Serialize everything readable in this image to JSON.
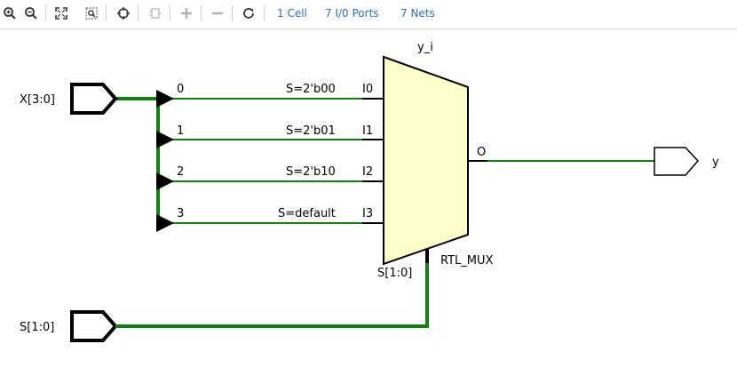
{
  "toolbar": {
    "buttons": [
      {
        "icon": "zoom-in-icon"
      },
      {
        "icon": "zoom-out-icon"
      },
      {
        "icon": "zoom-fit-icon"
      },
      {
        "icon": "zoom-area-icon"
      },
      {
        "icon": "crosshair-icon"
      },
      {
        "icon": "regenerate-icon"
      },
      {
        "icon": "expand-plus-icon"
      },
      {
        "icon": "collapse-minus-icon"
      },
      {
        "icon": "refresh-icon"
      }
    ],
    "cells_link": "1 Cell",
    "ports_link": "7 I/0 Ports",
    "nets_link": "7 Nets"
  },
  "schematic": {
    "colors": {
      "wire": "#108010",
      "mux_fill": "#ffffcc",
      "stroke": "#000000"
    },
    "input_port_x": "X[3:0]",
    "input_port_s": "S[1:0]",
    "output_port": "y",
    "mux": {
      "instance_name": "y_i",
      "type_label": "RTL_MUX",
      "select_pin": "S[1:0]",
      "output_pin": "O",
      "inputs": [
        {
          "bit": "0",
          "cond": "S=2'b00",
          "pin": "I0"
        },
        {
          "bit": "1",
          "cond": "S=2'b01",
          "pin": "I1"
        },
        {
          "bit": "2",
          "cond": "S=2'b10",
          "pin": "I2"
        },
        {
          "bit": "3",
          "cond": "S=default",
          "pin": "I3"
        }
      ]
    }
  }
}
